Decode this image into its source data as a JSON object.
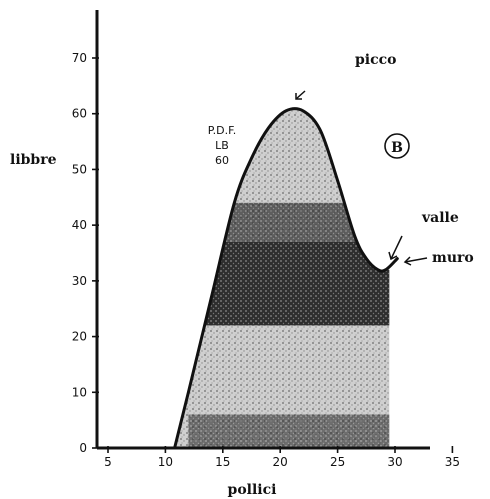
{
  "chart_data": {
    "type": "area",
    "xlabel": "pollici",
    "ylabel": "libbre",
    "xlim": [
      5,
      35
    ],
    "ylim": [
      0,
      75
    ],
    "xticks": [
      5,
      10,
      15,
      20,
      25,
      30,
      35
    ],
    "yticks": [
      0,
      10,
      20,
      30,
      40,
      50,
      60,
      70
    ],
    "grid": false,
    "series": [
      {
        "x": [
          10.8,
          12,
          14,
          16,
          17.5,
          19,
          20.5,
          22,
          23.5,
          25,
          26.5,
          27.5,
          28.5,
          29.2,
          30.2,
          30.6,
          29.5
        ],
        "y": [
          0,
          10,
          27,
          44,
          52,
          57.5,
          60.5,
          60.5,
          57,
          48,
          38,
          34,
          32,
          32,
          34,
          33,
          0
        ]
      }
    ],
    "annotations": {
      "peak": "picco",
      "valley": "valle",
      "wall": "muro",
      "panel_letter": "B",
      "pdf_line1": "P.D.F.",
      "pdf_line2": "LB",
      "pdf_line3": "60"
    }
  }
}
